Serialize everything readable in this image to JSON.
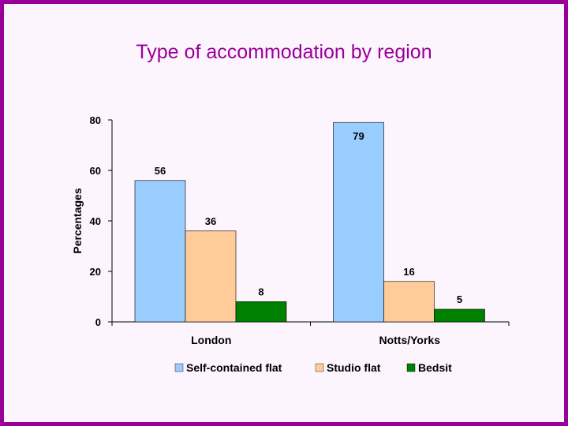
{
  "chart_data": {
    "type": "bar",
    "title": "Type of accommodation by region",
    "ylabel": "Percentages",
    "xlabel": "",
    "categories": [
      "London",
      "Notts/Yorks"
    ],
    "series": [
      {
        "name": "Self-contained flat",
        "color": "#99ccff",
        "values": [
          56,
          79
        ]
      },
      {
        "name": "Studio flat",
        "color": "#ffcc99",
        "values": [
          36,
          16
        ]
      },
      {
        "name": "Bedsit",
        "color": "#008000",
        "values": [
          8,
          5
        ]
      }
    ],
    "ylim": [
      0,
      80
    ],
    "yticks": [
      "0",
      "20",
      "40",
      "60",
      "80"
    ],
    "grid": false,
    "legend": "bottom"
  },
  "colors": {
    "accent": "#990099",
    "background": "#fdf5fd"
  }
}
